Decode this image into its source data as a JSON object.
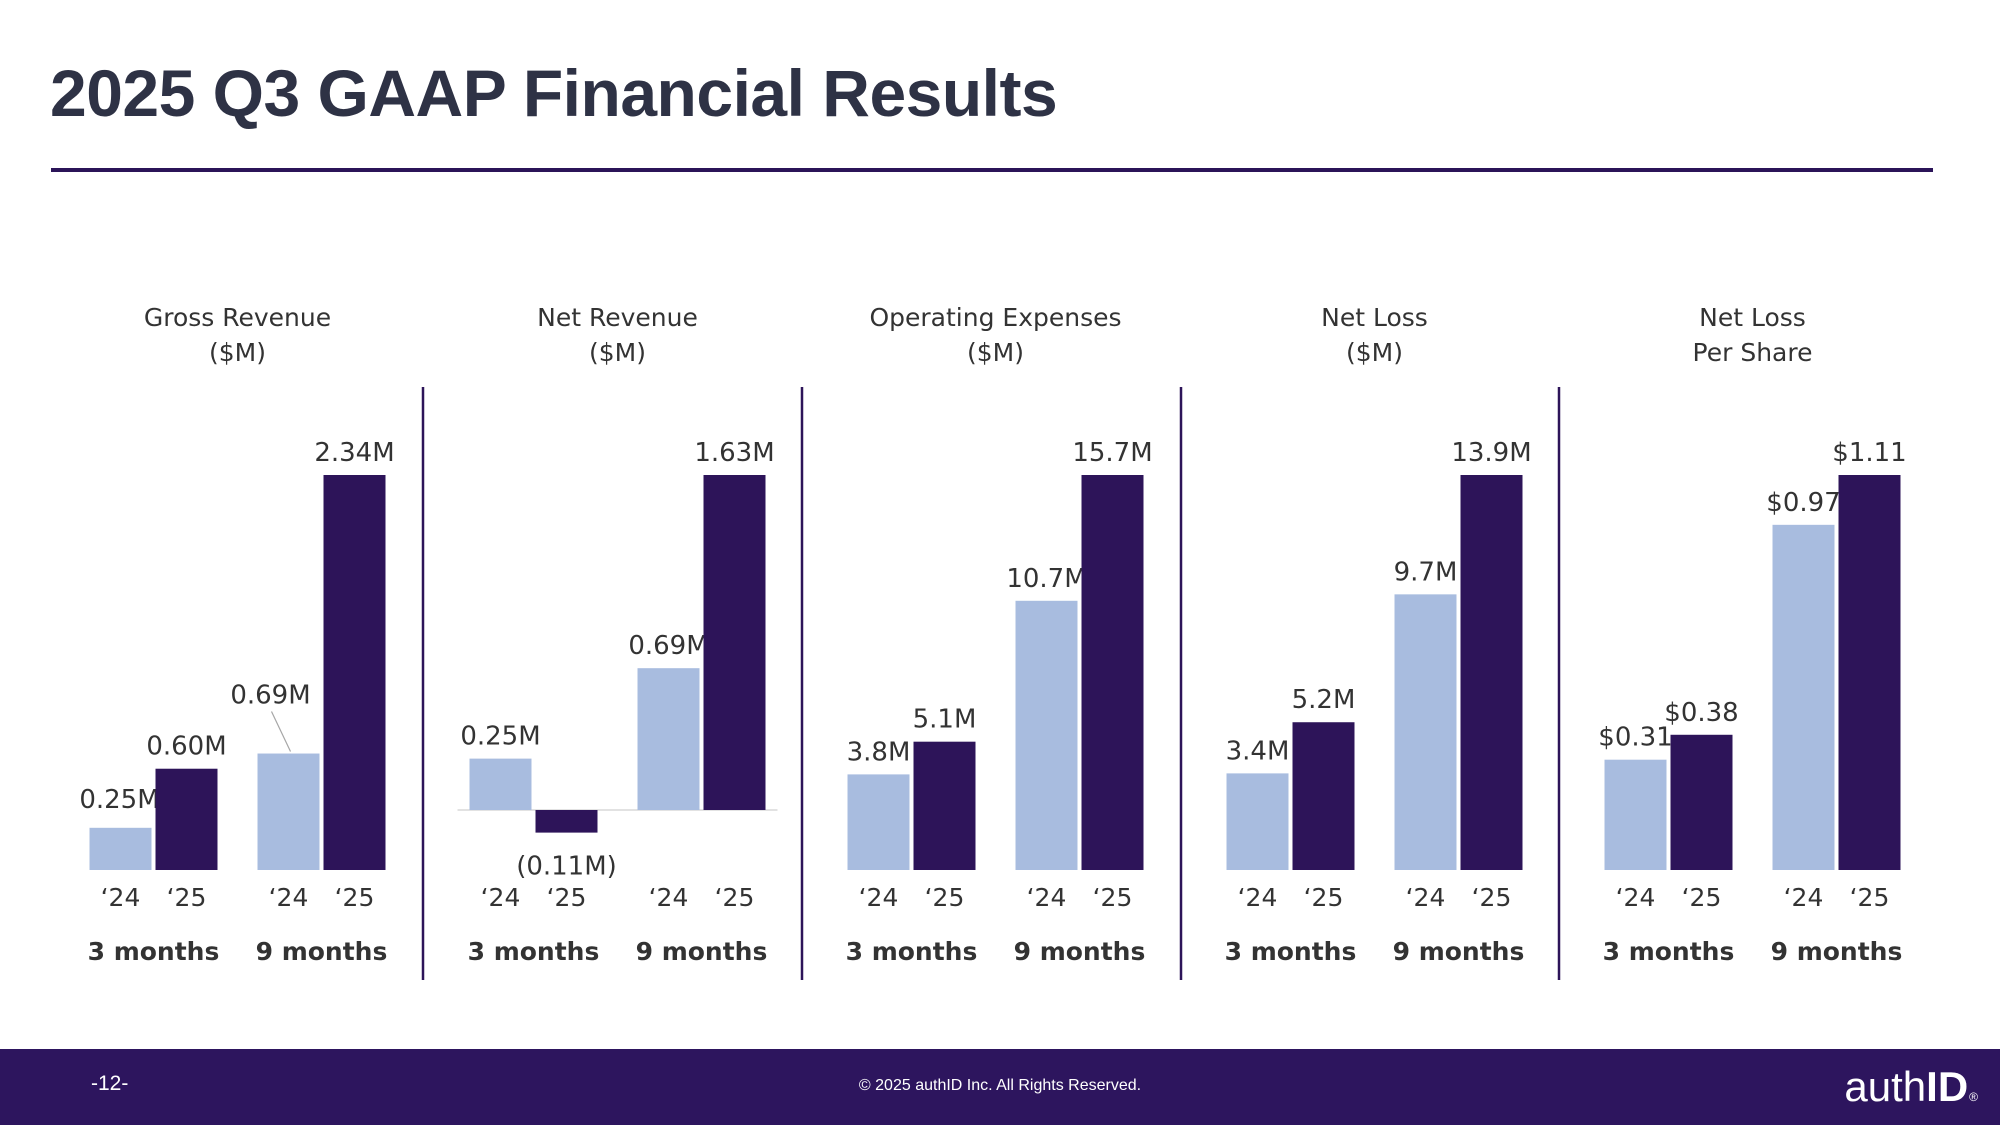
{
  "page": {
    "title": "2025 Q3 GAAP Financial Results",
    "footer": {
      "page_number": "-12-",
      "copyright": "© 2025 authID Inc. All Rights Reserved.",
      "logo_light": "auth",
      "logo_bold": "ID",
      "logo_mark": "®"
    }
  },
  "colors": {
    "prior_year": "#a8bcdf",
    "current_year": "#2d1459",
    "divider": "#2d1459",
    "label_text": "#333333",
    "title_text": "#2e3245",
    "footer_bg": "#2d155e"
  },
  "chart_data": [
    {
      "type": "bar",
      "title": [
        "Gross Revenue",
        "($M)"
      ],
      "groups": [
        "3 months",
        "9 months"
      ],
      "categories": [
        "‘24",
        "‘25"
      ],
      "series": [
        {
          "name": "3 months",
          "values": [
            0.25,
            0.6
          ],
          "labels": [
            "0.25M",
            "0.60M"
          ]
        },
        {
          "name": "9 months",
          "values": [
            0.69,
            2.34
          ],
          "labels": [
            "0.69M",
            "2.34M"
          ]
        }
      ],
      "ylim": [
        0,
        2.34
      ]
    },
    {
      "type": "bar",
      "title": [
        "Net Revenue",
        "($M)"
      ],
      "groups": [
        "3 months",
        "9 months"
      ],
      "categories": [
        "‘24",
        "‘25"
      ],
      "series": [
        {
          "name": "3 months",
          "values": [
            0.25,
            -0.11
          ],
          "labels": [
            "0.25M",
            "(0.11M)"
          ]
        },
        {
          "name": "9 months",
          "values": [
            0.69,
            1.63
          ],
          "labels": [
            "0.69M",
            "1.63M"
          ]
        }
      ],
      "ylim": [
        -0.11,
        1.63
      ]
    },
    {
      "type": "bar",
      "title": [
        "Operating Expenses",
        "($M)"
      ],
      "groups": [
        "3 months",
        "9 months"
      ],
      "categories": [
        "‘24",
        "‘25"
      ],
      "series": [
        {
          "name": "3 months",
          "values": [
            3.8,
            5.1
          ],
          "labels": [
            "3.8M",
            "5.1M"
          ]
        },
        {
          "name": "9 months",
          "values": [
            10.7,
            15.7
          ],
          "labels": [
            "10.7M",
            "15.7M"
          ]
        }
      ],
      "ylim": [
        0,
        15.7
      ]
    },
    {
      "type": "bar",
      "title": [
        "Net Loss",
        "($M)"
      ],
      "groups": [
        "3 months",
        "9 months"
      ],
      "categories": [
        "‘24",
        "‘25"
      ],
      "series": [
        {
          "name": "3 months",
          "values": [
            3.4,
            5.2
          ],
          "labels": [
            "3.4M",
            "5.2M"
          ]
        },
        {
          "name": "9 months",
          "values": [
            9.7,
            13.9
          ],
          "labels": [
            "9.7M",
            "13.9M"
          ]
        }
      ],
      "ylim": [
        0,
        13.9
      ]
    },
    {
      "type": "bar",
      "title": [
        "Net Loss",
        "Per Share"
      ],
      "groups": [
        "3 months",
        "9 months"
      ],
      "categories": [
        "‘24",
        "‘25"
      ],
      "series": [
        {
          "name": "3 months",
          "values": [
            0.31,
            0.38
          ],
          "labels": [
            "$0.31",
            "$0.38"
          ]
        },
        {
          "name": "9 months",
          "values": [
            0.97,
            1.11
          ],
          "labels": [
            "$0.97",
            "$1.11"
          ]
        }
      ],
      "ylim": [
        0,
        1.11
      ]
    }
  ]
}
